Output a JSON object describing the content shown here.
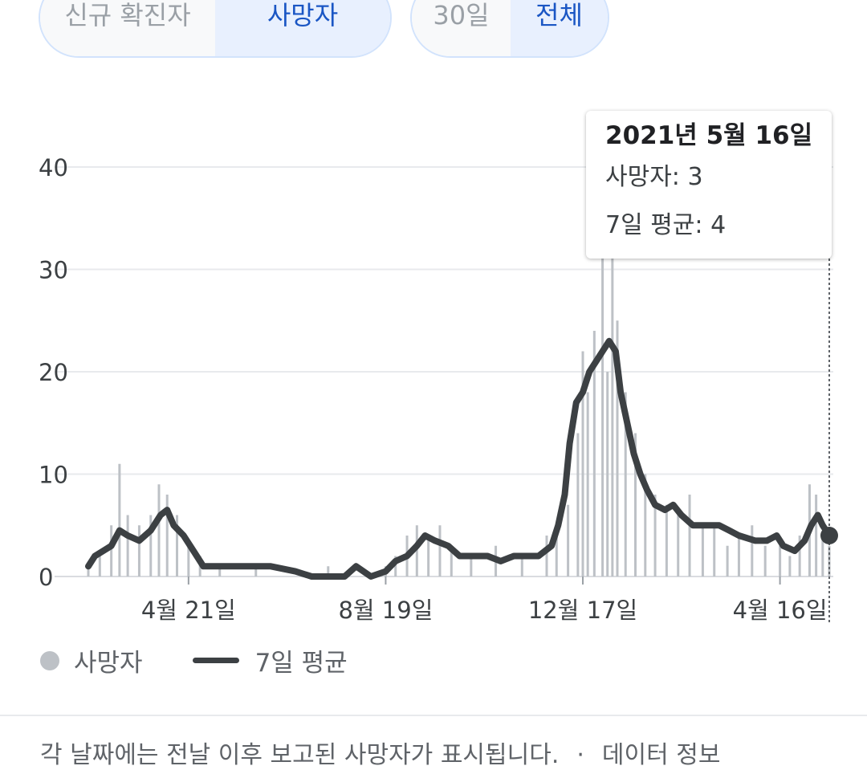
{
  "filters": {
    "metric": [
      {
        "label": "신규 확진자",
        "selected": false
      },
      {
        "label": "사망자",
        "selected": true
      }
    ],
    "range": [
      {
        "label": "30일",
        "selected": false
      },
      {
        "label": "전체",
        "selected": true
      }
    ]
  },
  "tooltip": {
    "date": "2021년 5월 16일",
    "deaths": "사망자: 3",
    "avg": "7일 평균: 4"
  },
  "legend": {
    "bars": "사망자",
    "line": "7일 평균"
  },
  "footer": {
    "note": "각 날짜에는 전날 이후 보고된 사망자가 표시됩니다.",
    "separator": "·",
    "link": "데이터 정보"
  },
  "colors": {
    "bar": "#bdc1c6",
    "line": "#3c4043",
    "accent": "#1a56c4",
    "grid": "#e8eaed"
  },
  "chart_data": {
    "type": "bar",
    "title": "",
    "xlabel": "",
    "ylabel": "",
    "ylim": [
      0,
      40
    ],
    "yticks": [
      0,
      10,
      20,
      30,
      40
    ],
    "x_range": [
      "2020-02-20",
      "2021-05-16"
    ],
    "xticks": [
      {
        "date": "2020-04-21",
        "label": "4월 21일"
      },
      {
        "date": "2020-08-19",
        "label": "8월 19일"
      },
      {
        "date": "2020-12-17",
        "label": "12월 17일"
      },
      {
        "date": "2021-04-16",
        "label": "4월 16일"
      }
    ],
    "grid": true,
    "legend_position": "bottom-left",
    "series": [
      {
        "name": "사망자",
        "type": "bar",
        "points": [
          [
            "2020-02-20",
            1
          ],
          [
            "2020-02-27",
            2
          ],
          [
            "2020-03-05",
            5
          ],
          [
            "2020-03-10",
            11
          ],
          [
            "2020-03-15",
            6
          ],
          [
            "2020-03-22",
            5
          ],
          [
            "2020-03-29",
            6
          ],
          [
            "2020-04-03",
            9
          ],
          [
            "2020-04-08",
            8
          ],
          [
            "2020-04-14",
            6
          ],
          [
            "2020-04-21",
            3
          ],
          [
            "2020-04-28",
            2
          ],
          [
            "2020-05-10",
            1
          ],
          [
            "2020-06-01",
            1
          ],
          [
            "2020-06-20",
            0
          ],
          [
            "2020-07-15",
            1
          ],
          [
            "2020-08-01",
            0
          ],
          [
            "2020-08-19",
            1
          ],
          [
            "2020-08-25",
            2
          ],
          [
            "2020-09-01",
            4
          ],
          [
            "2020-09-07",
            5
          ],
          [
            "2020-09-14",
            4
          ],
          [
            "2020-09-21",
            5
          ],
          [
            "2020-09-28",
            3
          ],
          [
            "2020-10-10",
            2
          ],
          [
            "2020-10-25",
            3
          ],
          [
            "2020-11-10",
            2
          ],
          [
            "2020-11-25",
            4
          ],
          [
            "2020-12-01",
            5
          ],
          [
            "2020-12-08",
            7
          ],
          [
            "2020-12-14",
            14
          ],
          [
            "2020-12-17",
            22
          ],
          [
            "2020-12-20",
            18
          ],
          [
            "2020-12-24",
            24
          ],
          [
            "2020-12-29",
            40
          ],
          [
            "2021-01-01",
            20
          ],
          [
            "2021-01-04",
            35
          ],
          [
            "2021-01-07",
            25
          ],
          [
            "2021-01-12",
            18
          ],
          [
            "2021-01-18",
            14
          ],
          [
            "2021-01-24",
            10
          ],
          [
            "2021-01-30",
            8
          ],
          [
            "2021-02-06",
            7
          ],
          [
            "2021-02-13",
            6
          ],
          [
            "2021-02-20",
            8
          ],
          [
            "2021-02-28",
            5
          ],
          [
            "2021-03-07",
            5
          ],
          [
            "2021-03-15",
            3
          ],
          [
            "2021-03-22",
            4
          ],
          [
            "2021-03-30",
            5
          ],
          [
            "2021-04-07",
            3
          ],
          [
            "2021-04-16",
            3
          ],
          [
            "2021-04-22",
            2
          ],
          [
            "2021-04-28",
            4
          ],
          [
            "2021-05-04",
            9
          ],
          [
            "2021-05-08",
            8
          ],
          [
            "2021-05-12",
            4
          ],
          [
            "2021-05-16",
            3
          ]
        ]
      },
      {
        "name": "7일 평균",
        "type": "line",
        "points": [
          [
            "2020-02-20",
            1
          ],
          [
            "2020-02-24",
            2
          ],
          [
            "2020-03-05",
            3
          ],
          [
            "2020-03-10",
            4.5
          ],
          [
            "2020-03-15",
            4
          ],
          [
            "2020-03-22",
            3.5
          ],
          [
            "2020-03-29",
            4.5
          ],
          [
            "2020-04-04",
            6
          ],
          [
            "2020-04-08",
            6.5
          ],
          [
            "2020-04-12",
            5
          ],
          [
            "2020-04-18",
            4
          ],
          [
            "2020-04-24",
            2.5
          ],
          [
            "2020-04-30",
            1
          ],
          [
            "2020-06-10",
            1
          ],
          [
            "2020-06-25",
            0.5
          ],
          [
            "2020-07-05",
            0
          ],
          [
            "2020-07-25",
            0
          ],
          [
            "2020-08-01",
            1
          ],
          [
            "2020-08-10",
            0
          ],
          [
            "2020-08-19",
            0.5
          ],
          [
            "2020-08-25",
            1.5
          ],
          [
            "2020-09-01",
            2
          ],
          [
            "2020-09-07",
            3
          ],
          [
            "2020-09-12",
            4
          ],
          [
            "2020-09-18",
            3.5
          ],
          [
            "2020-09-26",
            3
          ],
          [
            "2020-10-03",
            2
          ],
          [
            "2020-10-20",
            2
          ],
          [
            "2020-10-28",
            1.5
          ],
          [
            "2020-11-05",
            2
          ],
          [
            "2020-11-20",
            2
          ],
          [
            "2020-11-28",
            3
          ],
          [
            "2020-12-02",
            5
          ],
          [
            "2020-12-06",
            8
          ],
          [
            "2020-12-09",
            13
          ],
          [
            "2020-12-13",
            17
          ],
          [
            "2020-12-17",
            18
          ],
          [
            "2020-12-21",
            20
          ],
          [
            "2020-12-25",
            21
          ],
          [
            "2020-12-29",
            22
          ],
          [
            "2021-01-02",
            23
          ],
          [
            "2021-01-06",
            22
          ],
          [
            "2021-01-09",
            18
          ],
          [
            "2021-01-13",
            15
          ],
          [
            "2021-01-17",
            12
          ],
          [
            "2021-01-21",
            10
          ],
          [
            "2021-01-25",
            8.5
          ],
          [
            "2021-01-30",
            7
          ],
          [
            "2021-02-05",
            6.5
          ],
          [
            "2021-02-10",
            7
          ],
          [
            "2021-02-15",
            6
          ],
          [
            "2021-02-22",
            5
          ],
          [
            "2021-03-01",
            5
          ],
          [
            "2021-03-10",
            5
          ],
          [
            "2021-03-16",
            4.5
          ],
          [
            "2021-03-22",
            4
          ],
          [
            "2021-04-01",
            3.5
          ],
          [
            "2021-04-08",
            3.5
          ],
          [
            "2021-04-14",
            4
          ],
          [
            "2021-04-18",
            3
          ],
          [
            "2021-04-25",
            2.5
          ],
          [
            "2021-05-01",
            3.5
          ],
          [
            "2021-05-05",
            5
          ],
          [
            "2021-05-09",
            6
          ],
          [
            "2021-05-12",
            5
          ],
          [
            "2021-05-16",
            4
          ]
        ]
      }
    ]
  }
}
